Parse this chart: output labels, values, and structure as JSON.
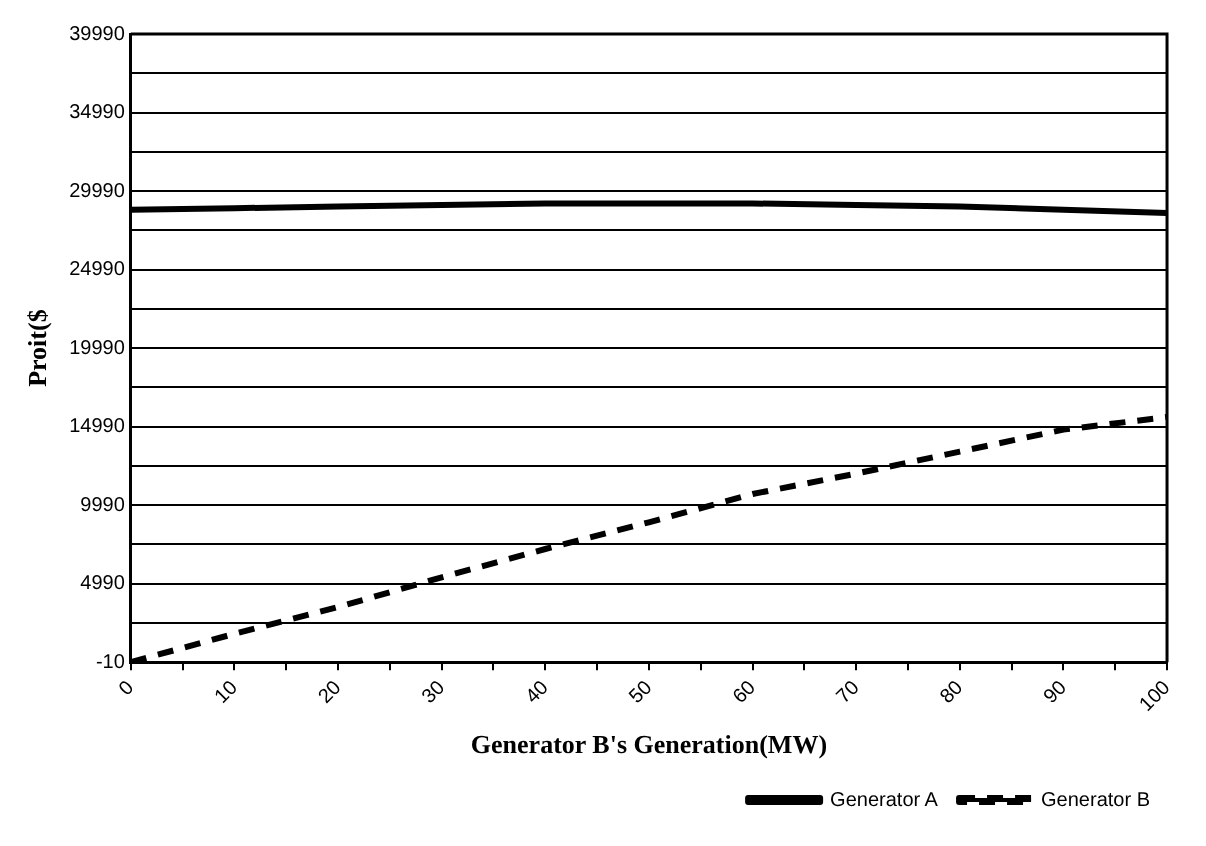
{
  "chart_data": {
    "type": "line",
    "xlabel": "Generator B's Generation(MW)",
    "ylabel": "Proit($",
    "x": [
      0,
      10,
      20,
      30,
      40,
      50,
      60,
      70,
      80,
      90,
      100
    ],
    "series": [
      {
        "name": "Generator A",
        "color": "#000000",
        "line_style": "solid",
        "values": [
          28800,
          28900,
          29000,
          29100,
          29200,
          29200,
          29200,
          29100,
          29000,
          28800,
          28600
        ]
      },
      {
        "name": "Generator B",
        "color": "#000000",
        "line_style": "dashed",
        "values": [
          0,
          1800,
          3500,
          5400,
          7200,
          8900,
          10700,
          12000,
          13400,
          14800,
          15600
        ]
      }
    ],
    "xlim": [
      0,
      100
    ],
    "xticks": [
      0,
      {
        "value": 5,
        "label": null
      },
      10,
      {
        "value": 15,
        "label": null
      },
      20,
      {
        "value": 25,
        "label": null
      },
      30,
      {
        "value": 35,
        "label": null
      },
      40,
      {
        "value": 45,
        "label": null
      },
      50,
      {
        "value": 55,
        "label": null
      },
      60,
      {
        "value": 65,
        "label": null
      },
      70,
      {
        "value": 75,
        "label": null
      },
      80,
      {
        "value": 85,
        "label": null
      },
      90,
      {
        "value": 95,
        "label": null
      },
      100
    ],
    "ylim": [
      -10,
      39990
    ],
    "yticks": [
      -10,
      {
        "value": 2490,
        "label": null
      },
      4990,
      {
        "value": 7490,
        "label": null
      },
      9990,
      {
        "value": 12490,
        "label": null
      },
      14990,
      {
        "value": 17490,
        "label": null
      },
      19990,
      {
        "value": 22490,
        "label": null
      },
      24990,
      {
        "value": 27490,
        "label": null
      },
      29990,
      {
        "value": 32490,
        "label": null
      },
      34990,
      {
        "value": 37490,
        "label": null
      },
      39990
    ],
    "grid": "y",
    "legend": "bottom right",
    "marker": "none"
  }
}
